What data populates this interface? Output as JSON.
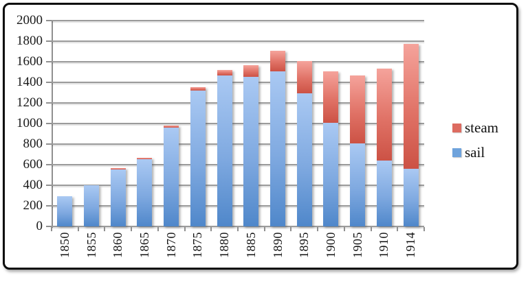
{
  "chart_data": {
    "type": "bar",
    "stacked": true,
    "title": "",
    "xlabel": "",
    "ylabel": "",
    "categories": [
      "1850",
      "1855",
      "1860",
      "1865",
      "1870",
      "1875",
      "1880",
      "1885",
      "1890",
      "1895",
      "1900",
      "1905",
      "1910",
      "1914"
    ],
    "series": [
      {
        "name": "sail",
        "legend_color": "#6fa3dc",
        "values": [
          295,
          400,
          555,
          655,
          960,
          1320,
          1465,
          1455,
          1510,
          1295,
          1010,
          810,
          640,
          560
        ]
      },
      {
        "name": "steam",
        "legend_color": "#dd6b60",
        "values": [
          0,
          0,
          15,
          15,
          20,
          35,
          55,
          110,
          200,
          315,
          500,
          655,
          895,
          1215
        ]
      }
    ],
    "ylim": [
      0,
      2000
    ],
    "ytick_step": 200,
    "yticks": [
      "0",
      "200",
      "400",
      "600",
      "800",
      "1000",
      "1200",
      "1400",
      "1600",
      "1800",
      "2000"
    ],
    "grid": true,
    "legend": {
      "position": "right",
      "entries": [
        {
          "label": "steam",
          "color": "#dd6b60"
        },
        {
          "label": "sail",
          "color": "#6fa3dc"
        }
      ]
    },
    "colors": {
      "sail_gradient_top": "#aac9f3",
      "sail_gradient_bottom": "#4f87ca",
      "steam_gradient_top": "#f5a39b",
      "steam_gradient_bottom": "#cc5245",
      "gridline": "#9b9b9b",
      "frame_border": "#0b0b0b",
      "background": "#ffffff"
    }
  }
}
